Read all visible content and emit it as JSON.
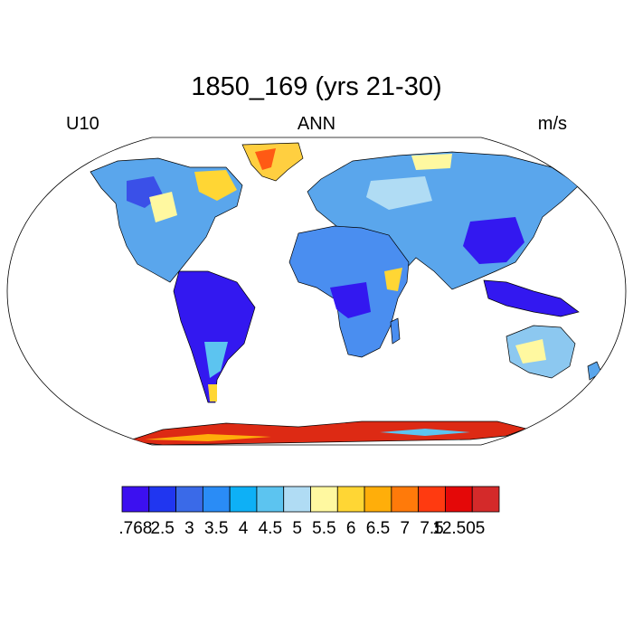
{
  "title": "1850_169 (yrs 21-30)",
  "left_label": "U10",
  "center_label": "ANN",
  "right_label": "m/s",
  "colorbar": {
    "colors": [
      "#3c10f0",
      "#2036f0",
      "#3a6ae8",
      "#2a8cf6",
      "#0eb0f6",
      "#5cc4f0",
      "#b0dcf4",
      "#fff8a0",
      "#ffd634",
      "#ffae0a",
      "#ff7a0a",
      "#ff3a10",
      "#e40808",
      "#d42a2a"
    ],
    "labels": [
      ".768",
      "2.5",
      "3",
      "3.5",
      "4",
      "4.5",
      "5",
      "5.5",
      "6",
      "6.5",
      "7",
      "7.5",
      "12.505"
    ]
  },
  "map": {
    "projection": "robinson",
    "ocean_color": "#ffffff",
    "land_regions": [
      {
        "name": "north-america",
        "fill": "#5aa6ec"
      },
      {
        "name": "greenland",
        "fill": "#ffcf40"
      },
      {
        "name": "south-america",
        "fill": "#3318f0"
      },
      {
        "name": "europe-asia",
        "fill": "#5aa6ec"
      },
      {
        "name": "africa",
        "fill": "#4a8ef0"
      },
      {
        "name": "australia",
        "fill": "#8cc8f0"
      },
      {
        "name": "antarctica",
        "fill": "#dd2a14"
      }
    ]
  }
}
